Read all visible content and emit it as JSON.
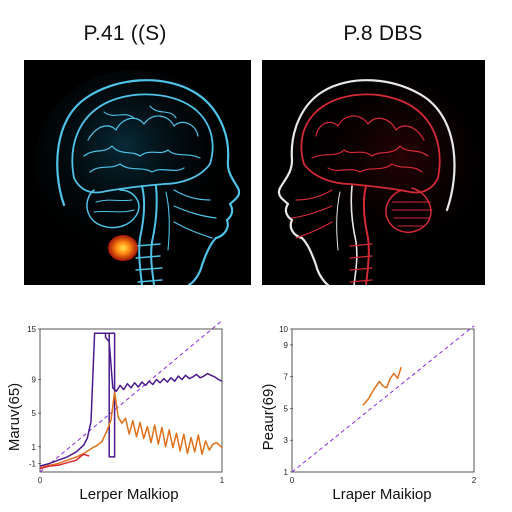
{
  "panels": {
    "left_title": "P.41 ((S)",
    "right_title": "P.8 DBS"
  },
  "colors": {
    "scan_left_outline": "#4fc3e8",
    "scan_right_outline": "#d42a35",
    "hotspot": "#ff7a10",
    "diag": "#8a2be2",
    "purple_series": "#4b1a8c",
    "orange_series": "#e0701a"
  },
  "chart_data": [
    {
      "type": "line",
      "xlabel": "Lerper Malkiop",
      "ylabel": "Maruv(65)",
      "xlim": [
        0,
        1
      ],
      "ylim": [
        -2,
        15
      ],
      "x_ticks": [
        {
          "v": 0,
          "label": "0"
        },
        {
          "v": 1,
          "label": "1"
        }
      ],
      "y_ticks": [
        {
          "v": 15,
          "label": "15"
        },
        {
          "v": 9,
          "label": "9"
        },
        {
          "v": 5,
          "label": "5"
        },
        {
          "v": 1,
          "label": "1"
        },
        {
          "v": -1,
          "label": "-1"
        }
      ],
      "grid": false,
      "reference_line": {
        "x": [
          0,
          1
        ],
        "y": [
          -2,
          16
        ],
        "style": "dashed"
      },
      "series": [
        {
          "color_key": "purple_series",
          "x": [
            0,
            0.05,
            0.1,
            0.15,
            0.2,
            0.24,
            0.26,
            0.28,
            0.3,
            0.3,
            0.38,
            0.38,
            0.41,
            0.41,
            0.36,
            0.36,
            0.38,
            0.4,
            0.42,
            0.44,
            0.46,
            0.48,
            0.5,
            0.52,
            0.54,
            0.56,
            0.58,
            0.6,
            0.62,
            0.64,
            0.66,
            0.68,
            0.7,
            0.72,
            0.74,
            0.76,
            0.78,
            0.8,
            0.82,
            0.84,
            0.86,
            0.88,
            0.9,
            0.92,
            0.94,
            0.96,
            0.98,
            1.0
          ],
          "y": [
            -1.3,
            -1.0,
            -0.6,
            -0.2,
            0.4,
            1.2,
            2.0,
            4.0,
            14.5,
            14.5,
            14.5,
            -0.2,
            -0.2,
            14.5,
            14.5,
            14.0,
            13.5,
            8.0,
            7.6,
            8.3,
            7.8,
            8.5,
            8.0,
            8.6,
            8.1,
            8.7,
            8.3,
            8.8,
            8.4,
            9.0,
            8.6,
            9.1,
            8.7,
            9.2,
            8.8,
            9.4,
            9.0,
            9.5,
            9.1,
            9.3,
            9.6,
            9.2,
            9.4,
            9.7,
            9.5,
            9.3,
            9.0,
            8.8
          ]
        },
        {
          "color_key": "orange_series",
          "x": [
            0,
            0.05,
            0.1,
            0.15,
            0.2,
            0.24,
            0.27,
            0.29,
            0.31,
            0.34,
            0.37,
            0.39,
            0.41,
            0.43,
            0.45,
            0.47,
            0.49,
            0.51,
            0.53,
            0.55,
            0.57,
            0.59,
            0.61,
            0.63,
            0.65,
            0.67,
            0.69,
            0.71,
            0.73,
            0.75,
            0.77,
            0.79,
            0.81,
            0.83,
            0.85,
            0.87,
            0.89,
            0.91,
            0.93,
            0.95,
            0.97,
            1.0
          ],
          "y": [
            -1.5,
            -1.2,
            -1.0,
            -0.6,
            -0.2,
            0.2,
            0.6,
            0.9,
            1.1,
            1.6,
            3.0,
            4.2,
            7.5,
            4.5,
            3.8,
            4.4,
            2.5,
            4.1,
            2.2,
            3.9,
            2.0,
            3.4,
            1.5,
            3.6,
            1.3,
            3.3,
            1.0,
            3.0,
            0.9,
            2.6,
            0.5,
            2.5,
            0.2,
            2.1,
            0.4,
            2.4,
            0.1,
            1.7,
            0.6,
            1.3,
            1.5,
            0.9
          ]
        },
        {
          "color_key": "scan_right_outline",
          "x": [
            0,
            0.05,
            0.1,
            0.15,
            0.2,
            0.22,
            0.24,
            0.27
          ],
          "y": [
            -1.6,
            -1.3,
            -1.2,
            -0.9,
            -0.6,
            -0.2,
            0.1,
            -0.1
          ]
        }
      ]
    },
    {
      "type": "line",
      "xlabel": "Lraper Maikiop",
      "ylabel": "Peaur(69)",
      "xlim": [
        0,
        2
      ],
      "ylim": [
        1,
        10
      ],
      "x_ticks": [
        {
          "v": 0,
          "label": "0"
        },
        {
          "v": 2,
          "label": "2"
        }
      ],
      "y_ticks": [
        {
          "v": 10,
          "label": "10"
        },
        {
          "v": 9,
          "label": "9"
        },
        {
          "v": 7,
          "label": "7"
        },
        {
          "v": 5,
          "label": "5"
        },
        {
          "v": 3,
          "label": "3"
        },
        {
          "v": 1,
          "label": "1"
        }
      ],
      "grid": false,
      "reference_line": {
        "x": [
          0,
          2
        ],
        "y": [
          1,
          10.2
        ],
        "style": "dashed"
      },
      "series": [
        {
          "color_key": "orange_series",
          "x": [
            0.78,
            0.84,
            0.9,
            0.96,
            1.0,
            1.04,
            1.08,
            1.12,
            1.16,
            1.2
          ],
          "y": [
            5.2,
            5.6,
            6.2,
            6.7,
            6.4,
            6.3,
            6.9,
            7.2,
            6.9,
            7.6
          ]
        }
      ]
    }
  ]
}
